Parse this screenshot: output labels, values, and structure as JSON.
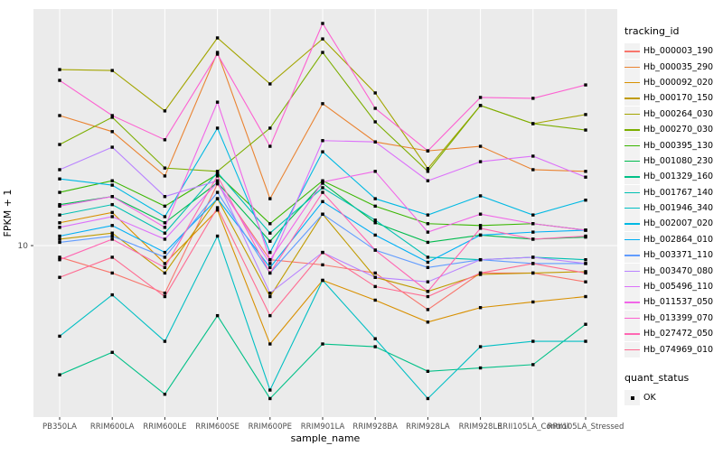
{
  "chart_data": {
    "type": "line",
    "title": "",
    "xlabel": "sample_name",
    "ylabel": "FPKM + 1",
    "y_scale": "log10",
    "y_tick_labels": [
      "10"
    ],
    "grid": "on",
    "panel_bg": "#EBEBEB",
    "grid_color": "#FFFFFF",
    "marker_color": "#000000",
    "legend_position": "right",
    "legend_color_title": "tracking_id",
    "legend_shape_title": "quant_status",
    "legend_shape_items": [
      "OK"
    ],
    "categories": [
      "PB350LA",
      "RRIM600LA",
      "RRIM600LE",
      "RRIM600SE",
      "RRIM600PE",
      "RRIM901LA",
      "RRIM928BA",
      "RRIM928LA",
      "RRIM928LE",
      "RRII105LA_Control",
      "RRII105LA_Stressed"
    ],
    "series": [
      {
        "name": "Hb_000003_190",
        "color": "#F8766D",
        "values": [
          9.0,
          7.8,
          6.5,
          17.5,
          8.8,
          8.4,
          7.8,
          5.6,
          7.8,
          7.8,
          7.2
        ]
      },
      {
        "name": "Hb_000035_290",
        "color": "#EA8331",
        "values": [
          32.5,
          28.1,
          18.8,
          57.6,
          15.3,
          36.2,
          25.6,
          23.6,
          24.6,
          19.9,
          19.6
        ]
      },
      {
        "name": "Hb_000092_020",
        "color": "#D89000",
        "values": [
          12.3,
          13.5,
          8.5,
          13.8,
          4.1,
          7.3,
          6.1,
          5.0,
          5.7,
          6.0,
          6.3
        ]
      },
      {
        "name": "Hb_000170_150",
        "color": "#C09B00",
        "values": [
          10.6,
          11.2,
          7.8,
          15.3,
          6.3,
          13.3,
          7.5,
          6.6,
          7.7,
          7.8,
          7.9
        ]
      },
      {
        "name": "Hb_000264_030",
        "color": "#A3A500",
        "values": [
          49.3,
          48.9,
          33.9,
          65.7,
          43.3,
          65.1,
          39.9,
          20.1,
          35.6,
          30.2,
          32.8
        ]
      },
      {
        "name": "Hb_000270_030",
        "color": "#7CAE00",
        "values": [
          25.0,
          32.0,
          20.2,
          19.6,
          29.0,
          57.6,
          30.7,
          19.6,
          35.6,
          30.2,
          28.5
        ]
      },
      {
        "name": "Hb_000395_130",
        "color": "#39B600",
        "values": [
          16.2,
          18.0,
          14.3,
          19.1,
          12.2,
          18.0,
          14.3,
          12.2,
          12.0,
          12.2,
          11.5
        ]
      },
      {
        "name": "Hb_001080_230",
        "color": "#00BB4E",
        "values": [
          14.5,
          15.6,
          12.3,
          17.7,
          10.4,
          17.6,
          12.3,
          10.3,
          11.0,
          10.6,
          10.8
        ]
      },
      {
        "name": "Hb_001329_160",
        "color": "#00C087",
        "values": [
          3.1,
          3.8,
          2.6,
          5.3,
          2.5,
          4.1,
          4.0,
          3.2,
          3.3,
          3.4,
          4.9
        ]
      },
      {
        "name": "Hb_001767_140",
        "color": "#00C0B2",
        "values": [
          13.2,
          14.5,
          11.2,
          19.4,
          11.2,
          16.9,
          12.6,
          9.0,
          8.8,
          9.0,
          8.8
        ]
      },
      {
        "name": "Hb_001946_340",
        "color": "#00BFC4",
        "values": [
          4.4,
          6.4,
          4.2,
          10.9,
          2.7,
          7.3,
          4.3,
          2.5,
          4.0,
          4.2,
          4.2
        ]
      },
      {
        "name": "Hb_002007_020",
        "color": "#00B9E3",
        "values": [
          18.3,
          17.3,
          13.0,
          29.0,
          9.4,
          23.4,
          15.3,
          13.2,
          15.7,
          13.2,
          15.1
        ]
      },
      {
        "name": "Hb_002864_010",
        "color": "#00AFF5",
        "values": [
          10.9,
          12.0,
          9.4,
          15.3,
          8.2,
          14.9,
          11.0,
          8.6,
          11.0,
          11.3,
          11.5
        ]
      },
      {
        "name": "Hb_003371_110",
        "color": "#619CFF",
        "values": [
          10.3,
          10.9,
          9.0,
          16.2,
          7.8,
          13.3,
          9.6,
          8.2,
          8.8,
          8.5,
          8.5
        ]
      },
      {
        "name": "Hb_003470_080",
        "color": "#B983FF",
        "values": [
          19.9,
          24.4,
          15.6,
          18.0,
          6.5,
          9.4,
          7.5,
          7.2,
          8.8,
          9.0,
          8.5
        ]
      },
      {
        "name": "Hb_005496_110",
        "color": "#DC71FA",
        "values": [
          11.8,
          13.0,
          10.6,
          17.7,
          8.5,
          25.9,
          25.6,
          18.0,
          21.4,
          22.5,
          18.6
        ]
      },
      {
        "name": "Hb_011537_050",
        "color": "#F166E8",
        "values": [
          14.3,
          15.6,
          11.8,
          36.7,
          8.8,
          17.8,
          19.6,
          11.3,
          13.3,
          12.2,
          11.5
        ]
      },
      {
        "name": "Hb_013399_070",
        "color": "#FD61D1",
        "values": [
          44.7,
          32.5,
          26.1,
          56.7,
          24.6,
          74.9,
          34.7,
          23.6,
          38.3,
          38.0,
          42.9
        ]
      },
      {
        "name": "Hb_027472_050",
        "color": "#FF67B3",
        "values": [
          8.8,
          10.6,
          8.2,
          18.8,
          7.8,
          16.2,
          9.6,
          6.6,
          11.7,
          10.6,
          10.9
        ]
      },
      {
        "name": "Hb_074969_010",
        "color": "#FF6C92",
        "values": [
          7.5,
          9.0,
          6.3,
          14.1,
          5.3,
          9.4,
          6.9,
          6.3,
          7.8,
          8.5,
          7.8
        ]
      }
    ]
  }
}
